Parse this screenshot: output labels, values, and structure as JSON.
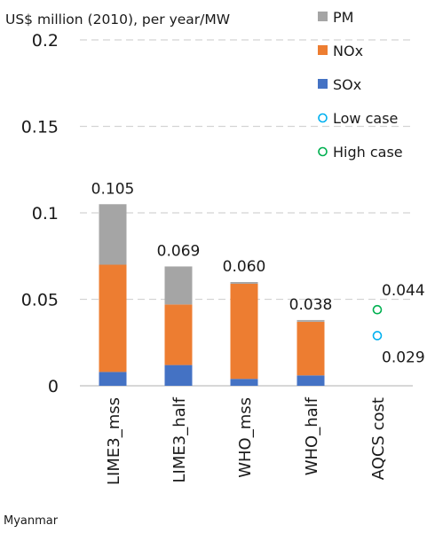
{
  "footer": {
    "country": "Myanmar"
  },
  "chart_data": {
    "type": "bar",
    "stacked": true,
    "ylabel": "US$ million (2010), per year/MW",
    "ylim": [
      0,
      0.2
    ],
    "yticks": [
      {
        "value": 0,
        "label": "0"
      },
      {
        "value": 0.05,
        "label": "0.05"
      },
      {
        "value": 0.1,
        "label": "0.1"
      },
      {
        "value": 0.15,
        "label": "0.15"
      },
      {
        "value": 0.2,
        "label": "0.2"
      }
    ],
    "grid": true,
    "legend_position": "top-right",
    "categories": [
      "LIME3_mss",
      "LIME3_half",
      "WHO_mss",
      "WHO_half",
      "AQCS cost"
    ],
    "series": [
      {
        "name": "SOx",
        "color": "#4472c4",
        "values": [
          0.008,
          0.012,
          0.004,
          0.006,
          null
        ]
      },
      {
        "name": "NOx",
        "color": "#ed7d31",
        "values": [
          0.062,
          0.035,
          0.055,
          0.031,
          null
        ]
      },
      {
        "name": "PM",
        "color": "#a5a5a5",
        "values": [
          0.035,
          0.022,
          0.001,
          0.001,
          null
        ]
      }
    ],
    "totals": [
      {
        "value": 0.105,
        "label": "0.105"
      },
      {
        "value": 0.069,
        "label": "0.069"
      },
      {
        "value": 0.06,
        "label": "0.060"
      },
      {
        "value": 0.038,
        "label": "0.038"
      }
    ],
    "points": [
      {
        "name": "Low case",
        "category": "AQCS cost",
        "value": 0.029,
        "label": "0.029",
        "color": "#00b0f0"
      },
      {
        "name": "High case",
        "category": "AQCS cost",
        "value": 0.044,
        "label": "0.044",
        "color": "#00b050"
      }
    ],
    "legend": [
      {
        "name": "PM",
        "kind": "square",
        "color": "#a5a5a5"
      },
      {
        "name": "NOx",
        "kind": "square",
        "color": "#ed7d31"
      },
      {
        "name": "SOx",
        "kind": "square",
        "color": "#4472c4"
      },
      {
        "name": "Low case",
        "kind": "circle",
        "color": "#00b0f0"
      },
      {
        "name": "High case",
        "kind": "circle",
        "color": "#00b050"
      }
    ]
  }
}
